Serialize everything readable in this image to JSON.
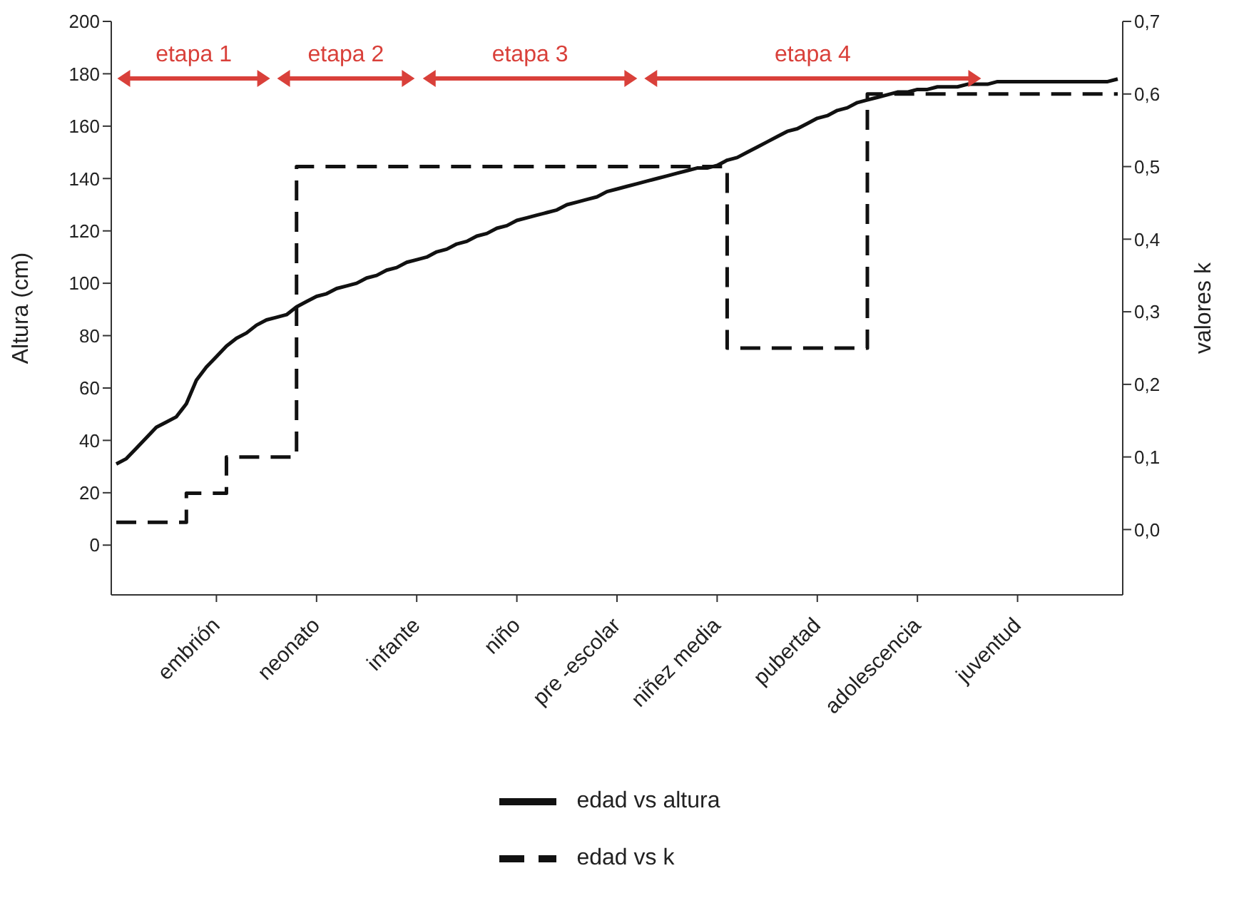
{
  "chart_data": {
    "type": "line",
    "categories": [
      null,
      null,
      null,
      null,
      null,
      null,
      null,
      null,
      null,
      null,
      "embrión",
      null,
      null,
      null,
      null,
      null,
      null,
      null,
      null,
      null,
      "neonato",
      null,
      null,
      null,
      null,
      null,
      null,
      null,
      null,
      null,
      "infante",
      null,
      null,
      null,
      null,
      null,
      null,
      null,
      null,
      null,
      "niño",
      null,
      null,
      null,
      null,
      null,
      null,
      null,
      null,
      null,
      "pre -escolar",
      null,
      null,
      null,
      null,
      null,
      null,
      null,
      null,
      null,
      "niñez media",
      null,
      null,
      null,
      null,
      null,
      null,
      null,
      null,
      null,
      "pubertad",
      null,
      null,
      null,
      null,
      null,
      null,
      null,
      null,
      null,
      "adolescencia",
      null,
      null,
      null,
      null,
      null,
      null,
      null,
      null,
      null,
      "juventud",
      null,
      null,
      null,
      null,
      null,
      null,
      null,
      null,
      null,
      null
    ],
    "ylabel": "Altura (cm)",
    "y2label": "valores k",
    "ylim": [
      -19,
      200
    ],
    "yticks": [
      0,
      20,
      40,
      60,
      80,
      100,
      120,
      140,
      160,
      180,
      200
    ],
    "y2lim": [
      -0.09,
      0.7
    ],
    "y2ticks": [
      {
        "value": 0,
        "label": "0,0"
      },
      {
        "value": 0.1,
        "label": "0,1"
      },
      {
        "value": 0.2,
        "label": "0,2"
      },
      {
        "value": 0.3,
        "label": "0,3"
      },
      {
        "value": 0.4,
        "label": "0,4"
      },
      {
        "value": 0.5,
        "label": "0,5"
      },
      {
        "value": 0.6,
        "label": "0,6"
      },
      {
        "value": 0.7,
        "label": "0,7"
      }
    ],
    "series": [
      {
        "name": "edad vs altura",
        "type": "line",
        "color": "#111111",
        "line_style": "solid",
        "values": [
          31,
          33,
          37,
          41,
          45,
          47,
          49,
          54,
          63,
          68,
          72,
          76,
          79,
          81,
          84,
          86,
          87,
          88,
          91,
          93,
          95,
          96,
          98,
          99,
          100,
          102,
          103,
          105,
          106,
          108,
          109,
          110,
          112,
          113,
          115,
          116,
          118,
          119,
          121,
          122,
          124,
          125,
          126,
          127,
          128,
          130,
          131,
          132,
          133,
          135,
          136,
          137,
          138,
          139,
          140,
          141,
          142,
          143,
          144,
          144,
          145,
          147,
          148,
          150,
          152,
          154,
          156,
          158,
          159,
          161,
          163,
          164,
          166,
          167,
          169,
          170,
          171,
          172,
          173,
          173,
          174,
          174,
          175,
          175,
          175,
          176,
          176,
          176,
          177,
          177,
          177,
          177,
          177,
          177,
          177,
          177,
          177,
          177,
          177,
          177,
          178
        ]
      },
      {
        "name": "edad vs k",
        "type": "step",
        "axis": "y2",
        "color": "#111111",
        "line_style": "dashed",
        "values": [
          0.01,
          0.01,
          0.01,
          0.01,
          0.01,
          0.01,
          0.01,
          0.05,
          0.05,
          0.05,
          0.05,
          0.1,
          0.1,
          0.1,
          0.1,
          0.1,
          0.1,
          0.1,
          0.5,
          0.5,
          0.5,
          0.5,
          0.5,
          0.5,
          0.5,
          0.5,
          0.5,
          0.5,
          0.5,
          0.5,
          0.5,
          0.5,
          0.5,
          0.5,
          0.5,
          0.5,
          0.5,
          0.5,
          0.5,
          0.5,
          0.5,
          0.5,
          0.5,
          0.5,
          0.5,
          0.5,
          0.5,
          0.5,
          0.5,
          0.5,
          0.5,
          0.5,
          0.5,
          0.5,
          0.5,
          0.5,
          0.5,
          0.5,
          0.5,
          0.5,
          0.5,
          0.25,
          0.25,
          0.25,
          0.25,
          0.25,
          0.25,
          0.25,
          0.25,
          0.25,
          0.25,
          0.25,
          0.25,
          0.25,
          0.25,
          0.6,
          0.6,
          0.6,
          0.6,
          0.6,
          0.6,
          0.6,
          0.6,
          0.6,
          0.6,
          0.6,
          0.6,
          0.6,
          0.6,
          0.6,
          0.6,
          0.6,
          0.6,
          0.6,
          0.6,
          0.6,
          0.6,
          0.6,
          0.6,
          0.6,
          0.6
        ]
      }
    ],
    "annotations": [
      "etapa 1",
      "etapa 2",
      "etapa 3",
      "etapa 4"
    ],
    "marker": "none",
    "legend": "bottom"
  }
}
